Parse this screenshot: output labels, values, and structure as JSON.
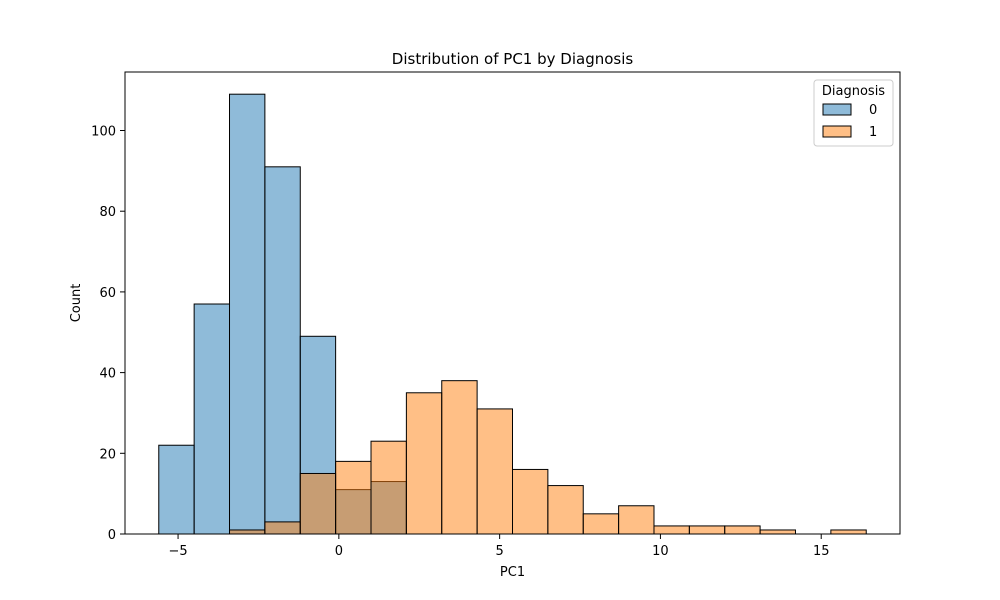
{
  "chart_data": {
    "type": "bar",
    "subtype": "overlapping-histogram",
    "title": "Distribution of PC1 by Diagnosis",
    "xlabel": "PC1",
    "ylabel": "Count",
    "xlim": [
      -6.65,
      17.45
    ],
    "ylim": [
      0,
      114.5
    ],
    "xticks": [
      -5,
      0,
      5,
      10,
      15
    ],
    "yticks": [
      0,
      20,
      40,
      60,
      80,
      100
    ],
    "grid": false,
    "legend": {
      "title": "Diagnosis",
      "placement": "top-right"
    },
    "bin_edges": [
      -5.6,
      -4.5,
      -3.4,
      -2.3,
      -1.2,
      -0.1,
      1.0,
      2.1,
      3.2,
      4.3,
      5.4,
      6.5,
      7.6,
      8.7,
      9.8,
      10.9,
      12.0,
      13.1,
      14.2,
      15.3,
      16.4
    ],
    "series": [
      {
        "name": "0",
        "color": "#1f77b4",
        "values": [
          22,
          57,
          109,
          91,
          49,
          11,
          13,
          0,
          0,
          0,
          0,
          0,
          0,
          0,
          0,
          0,
          0,
          0,
          0,
          0
        ]
      },
      {
        "name": "1",
        "color": "#ff7f0e",
        "values": [
          0,
          0,
          1,
          3,
          15,
          18,
          23,
          35,
          38,
          31,
          16,
          12,
          5,
          7,
          2,
          2,
          2,
          1,
          0,
          1
        ]
      }
    ]
  }
}
